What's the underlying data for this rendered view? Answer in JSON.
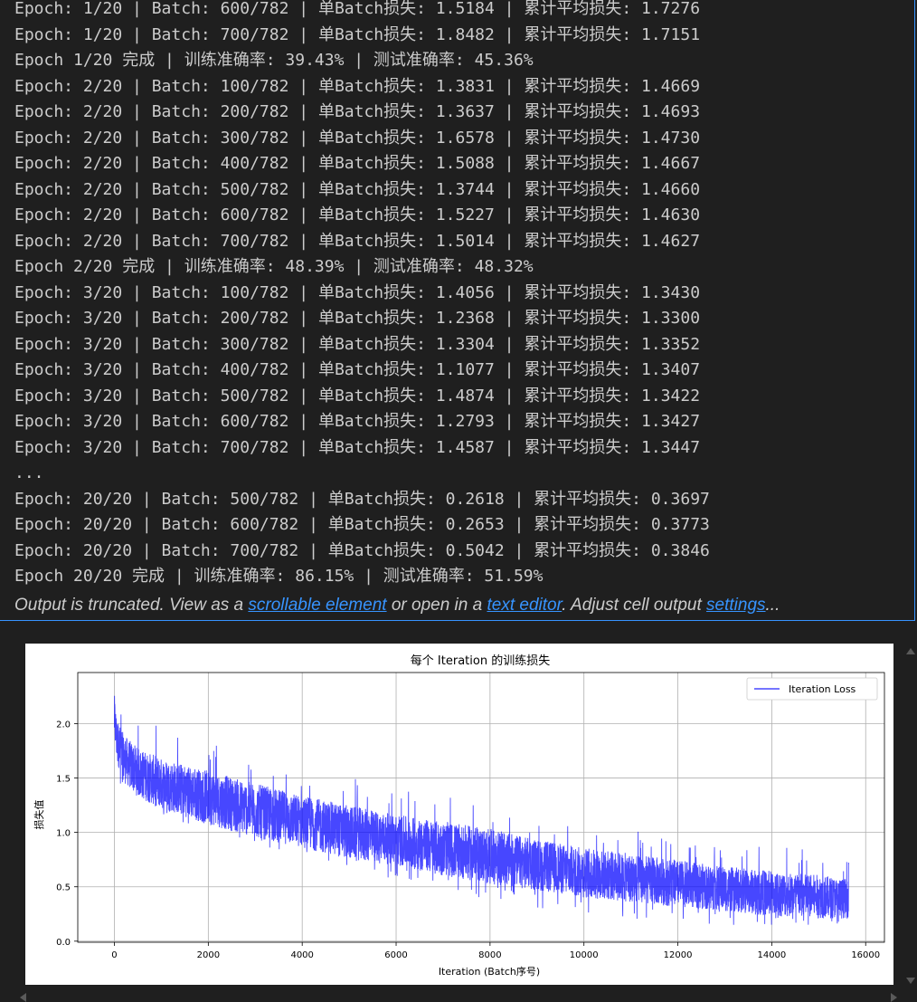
{
  "output": {
    "lines": [
      "Epoch: 1/20 | Batch: 600/782 | 单Batch损失: 1.5184 | 累计平均损失: 1.7276",
      "Epoch: 1/20 | Batch: 700/782 | 单Batch损失: 1.8482 | 累计平均损失: 1.7151",
      "Epoch 1/20 完成 | 训练准确率: 39.43% | 测试准确率: 45.36%",
      "Epoch: 2/20 | Batch: 100/782 | 单Batch损失: 1.3831 | 累计平均损失: 1.4669",
      "Epoch: 2/20 | Batch: 200/782 | 单Batch损失: 1.3637 | 累计平均损失: 1.4693",
      "Epoch: 2/20 | Batch: 300/782 | 单Batch损失: 1.6578 | 累计平均损失: 1.4730",
      "Epoch: 2/20 | Batch: 400/782 | 单Batch损失: 1.5088 | 累计平均损失: 1.4667",
      "Epoch: 2/20 | Batch: 500/782 | 单Batch损失: 1.3744 | 累计平均损失: 1.4660",
      "Epoch: 2/20 | Batch: 600/782 | 单Batch损失: 1.5227 | 累计平均损失: 1.4630",
      "Epoch: 2/20 | Batch: 700/782 | 单Batch损失: 1.5014 | 累计平均损失: 1.4627",
      "Epoch 2/20 完成 | 训练准确率: 48.39% | 测试准确率: 48.32%",
      "Epoch: 3/20 | Batch: 100/782 | 单Batch损失: 1.4056 | 累计平均损失: 1.3430",
      "Epoch: 3/20 | Batch: 200/782 | 单Batch损失: 1.2368 | 累计平均损失: 1.3300",
      "Epoch: 3/20 | Batch: 300/782 | 单Batch损失: 1.3304 | 累计平均损失: 1.3352",
      "Epoch: 3/20 | Batch: 400/782 | 单Batch损失: 1.1077 | 累计平均损失: 1.3407",
      "Epoch: 3/20 | Batch: 500/782 | 单Batch损失: 1.4874 | 累计平均损失: 1.3422",
      "Epoch: 3/20 | Batch: 600/782 | 单Batch损失: 1.2793 | 累计平均损失: 1.3427",
      "Epoch: 3/20 | Batch: 700/782 | 单Batch损失: 1.4587 | 累计平均损失: 1.3447",
      "...",
      "Epoch: 20/20 | Batch: 500/782 | 单Batch损失: 0.2618 | 累计平均损失: 0.3697",
      "Epoch: 20/20 | Batch: 600/782 | 单Batch损失: 0.2653 | 累计平均损失: 0.3773",
      "Epoch: 20/20 | Batch: 700/782 | 单Batch损失: 0.5042 | 累计平均损失: 0.3846",
      "Epoch 20/20 完成 | 训练准确率: 86.15% | 测试准确率: 51.59%"
    ]
  },
  "truncation": {
    "prefix": "Output is truncated. View as a ",
    "link_scrollable": "scrollable element",
    "middle": " or open in a ",
    "link_editor": "text editor",
    "suffix_1": ". Adjust cell output ",
    "link_settings": "settings",
    "suffix_2": "..."
  },
  "chart_data": {
    "type": "line",
    "title": "每个 Iteration 的训练损失",
    "xlabel": "Iteration (Batch序号)",
    "ylabel": "损失值",
    "xlim": [
      -780,
      16400
    ],
    "ylim": [
      -0.01,
      2.47
    ],
    "xticks": [
      0,
      2000,
      4000,
      6000,
      8000,
      10000,
      12000,
      14000,
      16000
    ],
    "yticks": [
      0.0,
      0.5,
      1.0,
      1.5,
      2.0
    ],
    "ytick_labels": [
      "0.0",
      "0.5",
      "1.0",
      "1.5",
      "2.0"
    ],
    "grid": true,
    "legend_location": "upper right",
    "series": [
      {
        "name": "Iteration Loss",
        "color": "#0000ff",
        "n_points": 15640,
        "trend_x": [
          0,
          50,
          200,
          500,
          1000,
          2000,
          3000,
          4000,
          5000,
          6000,
          7000,
          8000,
          9000,
          10000,
          11000,
          12000,
          13000,
          14000,
          15000,
          15640
        ],
        "trend_center": [
          2.05,
          1.85,
          1.68,
          1.55,
          1.45,
          1.32,
          1.2,
          1.1,
          1.0,
          0.93,
          0.85,
          0.78,
          0.7,
          0.63,
          0.58,
          0.53,
          0.48,
          0.44,
          0.41,
          0.39
        ],
        "trend_max": [
          2.35,
          2.2,
          2.15,
          2.12,
          1.95,
          1.85,
          1.78,
          1.62,
          1.55,
          1.4,
          1.35,
          1.3,
          1.15,
          1.08,
          1.02,
          0.95,
          0.9,
          0.9,
          0.85,
          0.8
        ],
        "trend_min": [
          1.55,
          1.45,
          1.35,
          1.3,
          1.1,
          0.95,
          0.87,
          0.75,
          0.65,
          0.55,
          0.45,
          0.38,
          0.3,
          0.24,
          0.2,
          0.17,
          0.15,
          0.14,
          0.12,
          0.15
        ]
      }
    ]
  }
}
